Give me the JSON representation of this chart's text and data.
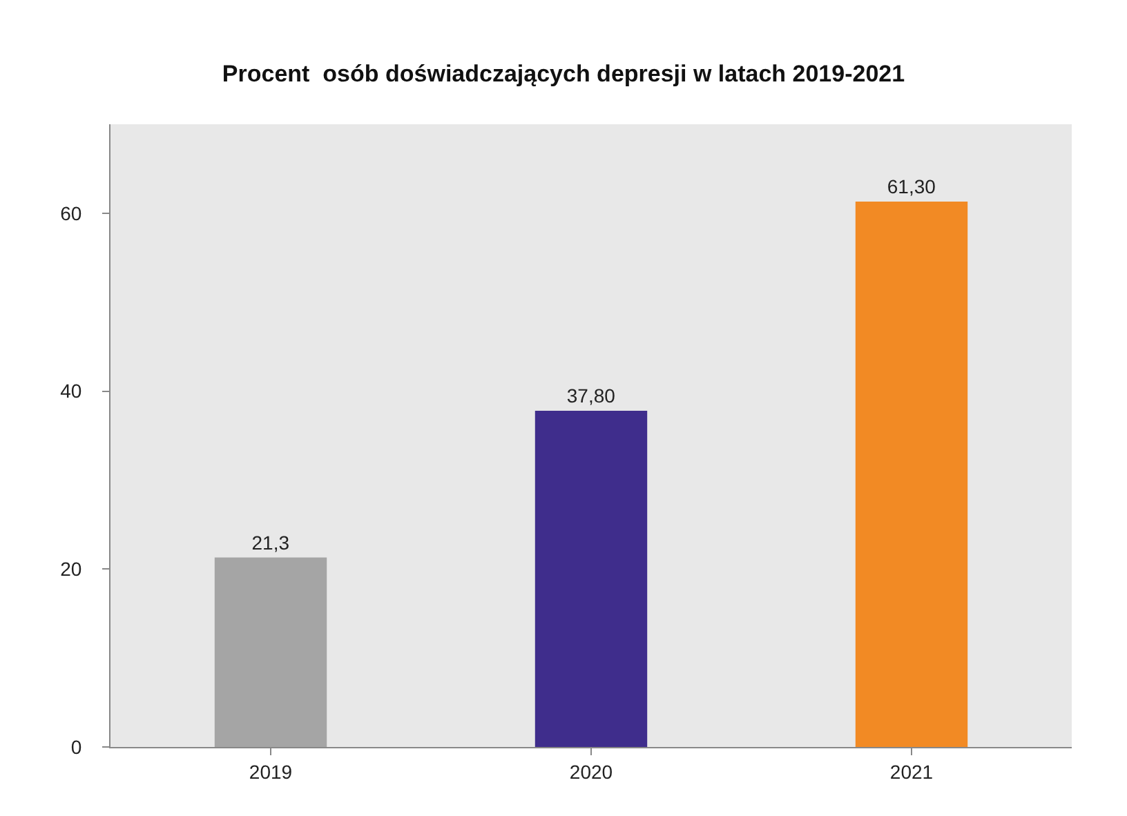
{
  "chart_data": {
    "type": "bar",
    "title": "Procent  osób doświadczających depresji w latach 2019-2021",
    "categories": [
      "2019",
      "2020",
      "2021"
    ],
    "values": [
      21.3,
      37.8,
      61.3
    ],
    "colors": [
      "#a5a5a5",
      "#3f2d8c",
      "#f28a24"
    ],
    "value_labels": [
      "21,3",
      "37,80",
      "61,30"
    ],
    "ylim": [
      0,
      70
    ],
    "yticks": [
      0,
      20,
      40,
      60
    ]
  }
}
